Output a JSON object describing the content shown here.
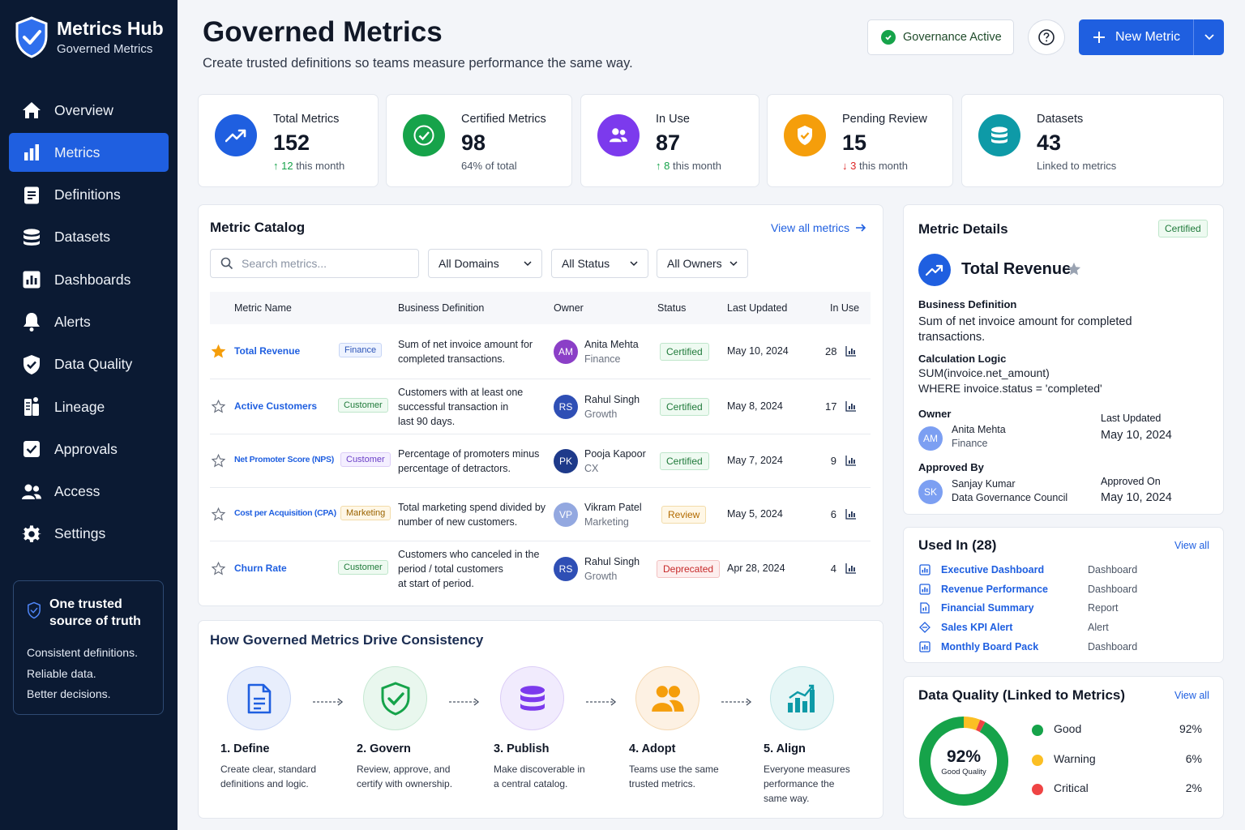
{
  "brand": {
    "title": "Metrics Hub",
    "subtitle": "Governed Metrics"
  },
  "nav": [
    {
      "label": "Overview",
      "icon": "home-icon"
    },
    {
      "label": "Metrics",
      "icon": "bar-chart-icon",
      "active": true
    },
    {
      "label": "Definitions",
      "icon": "document-icon"
    },
    {
      "label": "Datasets",
      "icon": "database-icon"
    },
    {
      "label": "Dashboards",
      "icon": "dashboard-icon"
    },
    {
      "label": "Alerts",
      "icon": "bell-icon"
    },
    {
      "label": "Data Quality",
      "icon": "shield-check-icon"
    },
    {
      "label": "Lineage",
      "icon": "lineage-icon"
    },
    {
      "label": "Approvals",
      "icon": "checkbox-icon"
    },
    {
      "label": "Access",
      "icon": "users-icon"
    },
    {
      "label": "Settings",
      "icon": "gear-icon"
    }
  ],
  "trust": {
    "title": "One trusted source of truth",
    "lines": [
      "Consistent definitions.",
      "Reliable data.",
      "Better decisions."
    ]
  },
  "header": {
    "title": "Governed Metrics",
    "subtitle": "Create trusted definitions so teams measure performance the same way.",
    "governance": "Governance Active",
    "new_metric": "New Metric"
  },
  "stats": [
    {
      "label": "Total Metrics",
      "value": "152",
      "trend": "up",
      "delta": "12",
      "note": "this month",
      "color": "#1f5fe0",
      "icon": "trend-up-icon"
    },
    {
      "label": "Certified Metrics",
      "value": "98",
      "trend": "",
      "delta": "",
      "note": "64% of total",
      "color": "#16a34a",
      "icon": "check-circle-icon"
    },
    {
      "label": "In Use",
      "value": "87",
      "trend": "up",
      "delta": "8",
      "note": "this month",
      "color": "#7c3aed",
      "icon": "users-icon"
    },
    {
      "label": "Pending Review",
      "value": "15",
      "trend": "down",
      "delta": "3",
      "note": "this month",
      "color": "#f59e0b",
      "icon": "shield-icon"
    },
    {
      "label": "Datasets",
      "value": "43",
      "trend": "",
      "delta": "",
      "note": "Linked to metrics",
      "color": "#0e9aa7",
      "icon": "database-icon"
    }
  ],
  "catalog": {
    "title": "Metric Catalog",
    "view_all": "View all metrics",
    "search_placeholder": "Search metrics...",
    "filters": [
      "All Domains",
      "All Status",
      "All Owners"
    ],
    "columns": [
      "Metric Name",
      "Business Definition",
      "Owner",
      "Status",
      "Last Updated",
      "In Use"
    ],
    "rows": [
      {
        "starred": true,
        "name": "Total Revenue",
        "domain": "Finance",
        "domain_style": "fin",
        "definition": [
          "Sum of net invoice amount for",
          "completed transactions."
        ],
        "initials": "AM",
        "avatar_color": "#8b3fc7",
        "owner": "Anita Mehta",
        "team": "Finance",
        "status": "Certified",
        "status_style": "cert",
        "updated": "May 10, 2024",
        "in_use": "28"
      },
      {
        "starred": false,
        "name": "Active Customers",
        "domain": "Customer",
        "domain_style": "cus",
        "definition": [
          "Customers with at least one",
          "successful transaction in",
          "last 90 days."
        ],
        "initials": "RS",
        "avatar_color": "#2f4fb5",
        "owner": "Rahul Singh",
        "team": "Growth",
        "status": "Certified",
        "status_style": "cert",
        "updated": "May 8, 2024",
        "in_use": "17"
      },
      {
        "starred": false,
        "name": "Net Promoter Score (NPS)",
        "domain": "Customer",
        "domain_style": "cus2",
        "definition": [
          "Percentage of promoters minus",
          "percentage of detractors."
        ],
        "initials": "PK",
        "avatar_color": "#1e3a8a",
        "owner": "Pooja Kapoor",
        "team": "CX",
        "status": "Certified",
        "status_style": "cert",
        "updated": "May 7, 2024",
        "in_use": "9"
      },
      {
        "starred": false,
        "name": "Cost per Acquisition (CPA)",
        "domain": "Marketing",
        "domain_style": "mkt",
        "definition": [
          "Total marketing spend divided by",
          "number of new customers."
        ],
        "initials": "VP",
        "avatar_color": "#93a8e0",
        "owner": "Vikram Patel",
        "team": "Marketing",
        "status": "Review",
        "status_style": "rev",
        "updated": "May 5, 2024",
        "in_use": "6"
      },
      {
        "starred": false,
        "name": "Churn Rate",
        "domain": "Customer",
        "domain_style": "cus",
        "definition": [
          "Customers who canceled in the",
          "period / total customers",
          "at start of period."
        ],
        "initials": "RS",
        "avatar_color": "#2f4fb5",
        "owner": "Rahul Singh",
        "team": "Growth",
        "status": "Deprecated",
        "status_style": "dep",
        "updated": "Apr 28, 2024",
        "in_use": "4"
      }
    ]
  },
  "steps": {
    "title": "How Governed Metrics Drive Consistency",
    "items": [
      {
        "title": "1. Define",
        "desc": [
          "Create clear, standard",
          "definitions and logic."
        ],
        "bg": "#e8eefc",
        "border": "#c9d6f5",
        "color": "#1f5fe0",
        "icon": "document-icon"
      },
      {
        "title": "2. Govern",
        "desc": [
          "Review, approve, and",
          "certify with ownership."
        ],
        "bg": "#e9f7ee",
        "border": "#c6e8d2",
        "color": "#16a34a",
        "icon": "shield-check-icon"
      },
      {
        "title": "3. Publish",
        "desc": [
          "Make discoverable in",
          "a central catalog."
        ],
        "bg": "#f1ebfd",
        "border": "#dccdf7",
        "color": "#7c3aed",
        "icon": "database-icon"
      },
      {
        "title": "4. Adopt",
        "desc": [
          "Teams use the same",
          "trusted metrics."
        ],
        "bg": "#fdf1e3",
        "border": "#f5d9b3",
        "color": "#f59e0b",
        "icon": "users-icon"
      },
      {
        "title": "5. Align",
        "desc": [
          "Everyone measures",
          "performance the",
          "same way."
        ],
        "bg": "#e6f6f6",
        "border": "#c2e6e7",
        "color": "#0e9aa7",
        "icon": "bar-chart-icon"
      }
    ]
  },
  "details": {
    "title": "Metric Details",
    "badge": "Certified",
    "metric": "Total Revenue",
    "def_label": "Business Definition",
    "definition": [
      "Sum of net invoice amount for completed",
      "transactions."
    ],
    "calc_label": "Calculation Logic",
    "calc": [
      "SUM(invoice.net_amount)",
      "WHERE invoice.status = 'completed'"
    ],
    "owner_label": "Owner",
    "owner_initials": "AM",
    "owner": "Anita Mehta",
    "owner_team": "Finance",
    "updated_label": "Last Updated",
    "updated": "May 10, 2024",
    "approved_label": "Approved By",
    "approver_initials": "SK",
    "approver": "Sanjay Kumar",
    "approver_team": "Data Governance Council",
    "approved_on_label": "Approved On",
    "approved_on": "May 10, 2024"
  },
  "used_in": {
    "title": "Used In (28)",
    "view_all": "View all",
    "items": [
      {
        "name": "Executive Dashboard",
        "type": "Dashboard",
        "icon": "dashboard-icon"
      },
      {
        "name": "Revenue Performance",
        "type": "Dashboard",
        "icon": "dashboard-icon"
      },
      {
        "name": "Financial Summary",
        "type": "Report",
        "icon": "report-icon"
      },
      {
        "name": "Sales KPI Alert",
        "type": "Alert",
        "icon": "alert-icon"
      },
      {
        "name": "Monthly Board Pack",
        "type": "Dashboard",
        "icon": "dashboard-icon"
      }
    ]
  },
  "quality": {
    "title": "Data Quality (Linked to Metrics)",
    "view_all": "View all",
    "score": "92%",
    "score_label": "Good Quality",
    "items": [
      {
        "label": "Good",
        "pct": "92%",
        "value": 92,
        "color": "#16a34a"
      },
      {
        "label": "Warning",
        "pct": "6%",
        "value": 6,
        "color": "#fbbf24"
      },
      {
        "label": "Critical",
        "pct": "2%",
        "value": 2,
        "color": "#ef4444"
      }
    ]
  }
}
